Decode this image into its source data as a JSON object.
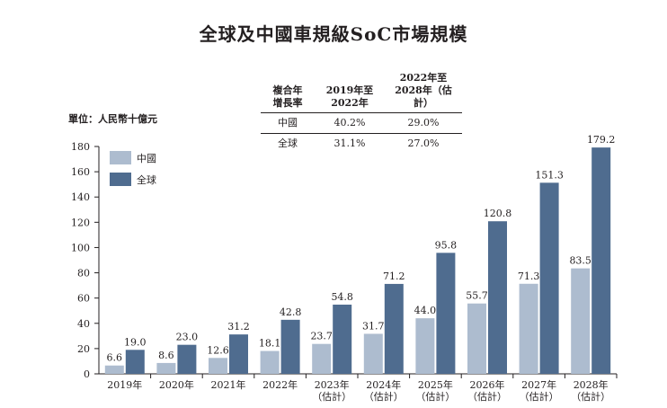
{
  "title": "全球及中國車規級SoC市場規模",
  "unit_label": "單位：人民幣十億元",
  "cagr_table": {
    "headers": [
      "複合年\n增長率",
      "2019年至\n2022年",
      "2022年至\n2028年（估計）"
    ],
    "rows": [
      [
        "中國",
        "40.2%",
        "29.0%"
      ],
      [
        "全球",
        "31.1%",
        "27.0%"
      ]
    ]
  },
  "colors": {
    "china": "#adbccf",
    "global": "#4f6c8f",
    "axis": "#231f20"
  },
  "chart_data": {
    "type": "bar",
    "title": "全球及中國車規級SoC市場規模",
    "ylabel": "單位：人民幣十億元",
    "xlabel": "",
    "ylim": [
      0,
      180
    ],
    "yticks": [
      0,
      20,
      40,
      60,
      80,
      100,
      120,
      140,
      160,
      180
    ],
    "categories": [
      "2019年",
      "2020年",
      "2021年",
      "2022年",
      "2023年\n（估計）",
      "2024年\n（估計）",
      "2025年\n（估計）",
      "2026年\n（估計）",
      "2027年\n（估計）",
      "2028年\n（估計）"
    ],
    "series": [
      {
        "name": "中國",
        "values": [
          6.6,
          8.6,
          12.6,
          18.1,
          23.7,
          31.7,
          44.0,
          55.7,
          71.3,
          83.5
        ],
        "labels": [
          "6.6",
          "8.6",
          "12.6",
          "18.1",
          "23.7",
          "31.7",
          "44.0",
          "55.7",
          "71.3",
          "83.5"
        ]
      },
      {
        "name": "全球",
        "values": [
          19.0,
          23.0,
          31.2,
          42.8,
          54.8,
          71.2,
          95.8,
          120.8,
          151.3,
          179.2
        ],
        "labels": [
          "19.0",
          "23.0",
          "31.2",
          "42.8",
          "54.8",
          "71.2",
          "95.8",
          "120.8",
          "151.3",
          "179.2"
        ]
      }
    ],
    "legend": "top-left"
  }
}
